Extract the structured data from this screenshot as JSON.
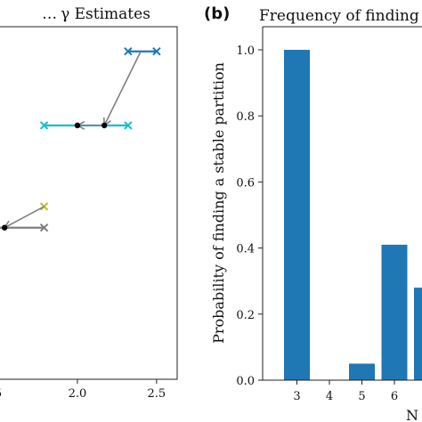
{
  "chart_data": [
    {
      "type": "line",
      "title": "γ Estimates",
      "title_prefix": "…",
      "x_ticks": [
        "2.0",
        "2.5"
      ],
      "x_tick_values": [
        2.0,
        2.5
      ],
      "x_tick_partial": "5",
      "x_tick_partial_value": 1.5,
      "xlim": [
        1.5,
        2.63
      ],
      "ylim": [
        0,
        1
      ],
      "series": [
        {
          "color": "#1f77b4",
          "y": 0.93,
          "interval": [
            2.32,
            2.5
          ],
          "marker_start": "cross",
          "marker_end": "cross"
        },
        {
          "color": "#17becf",
          "y": 0.72,
          "interval": [
            1.79,
            2.32
          ],
          "marker_start": "cross",
          "marker_end": "cross"
        },
        {
          "color": "#7f7f7f",
          "y": 0.43,
          "interval": [
            1.5,
            1.79
          ],
          "marker_end": "cross"
        },
        {
          "color": "#bcbd22",
          "y": 0.49,
          "point": 1.79,
          "marker": "cross"
        }
      ],
      "estimates": [
        {
          "x": 2.17,
          "y": 0.72
        },
        {
          "x": 2.0,
          "y": 0.72
        },
        {
          "x": 1.54,
          "y": 0.43
        }
      ],
      "arrows": [
        {
          "from": [
            2.4,
            0.93
          ],
          "to": [
            2.17,
            0.72
          ],
          "color": "#808080"
        },
        {
          "from": [
            2.17,
            0.72
          ],
          "to": [
            2.0,
            0.72
          ],
          "color": "#808080"
        },
        {
          "from": [
            1.79,
            0.49
          ],
          "to": [
            1.54,
            0.43
          ],
          "color": "#808080"
        }
      ]
    },
    {
      "type": "bar",
      "panel_label": "(b)",
      "title": "Frequency of finding",
      "ylabel": "Probability of finding a stable partition",
      "xlabel_partial": "N",
      "categories": [
        "3",
        "4",
        "5",
        "6",
        ""
      ],
      "values": [
        1.0,
        0.0,
        0.05,
        0.41,
        0.28
      ],
      "y_ticks": [
        "0.0",
        "0.2",
        "0.4",
        "0.6",
        "0.8",
        "1.0"
      ],
      "y_tick_values": [
        0.0,
        0.2,
        0.4,
        0.6,
        0.8,
        1.0
      ],
      "ylim": [
        0,
        1.07
      ],
      "bar_color": "#1f77b4"
    }
  ]
}
